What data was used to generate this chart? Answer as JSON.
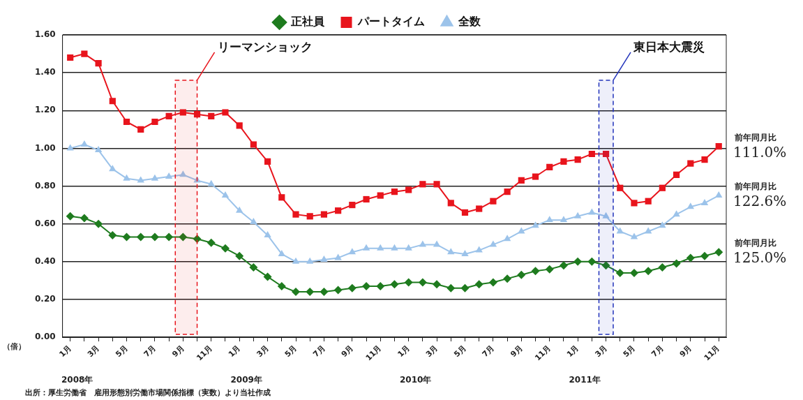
{
  "chart_data": {
    "type": "line",
    "ylabel": "（倍）",
    "legend": "top",
    "grid": "y",
    "line_style": "solid",
    "x": [
      "2008-01",
      "2008-02",
      "2008-03",
      "2008-04",
      "2008-05",
      "2008-06",
      "2008-07",
      "2008-08",
      "2008-09",
      "2008-10",
      "2008-11",
      "2008-12",
      "2009-01",
      "2009-02",
      "2009-03",
      "2009-04",
      "2009-05",
      "2009-06",
      "2009-07",
      "2009-08",
      "2009-09",
      "2009-10",
      "2009-11",
      "2009-12",
      "2010-01",
      "2010-02",
      "2010-03",
      "2010-04",
      "2010-05",
      "2010-06",
      "2010-07",
      "2010-08",
      "2010-09",
      "2010-10",
      "2010-11",
      "2010-12",
      "2011-01",
      "2011-02",
      "2011-03",
      "2011-04",
      "2011-05",
      "2011-06",
      "2011-07",
      "2011-08",
      "2011-09",
      "2011-10",
      "2011-11"
    ],
    "xlim": [
      "2007-12-15",
      "2011-11-17"
    ],
    "xticks": [
      {
        "value": "2008-01",
        "label": "1月"
      },
      {
        "value": "2008-02",
        "label": null
      },
      {
        "value": "2008-03",
        "label": "3月"
      },
      {
        "value": "2008-04",
        "label": null
      },
      {
        "value": "2008-05",
        "label": "5月"
      },
      {
        "value": "2008-06",
        "label": null
      },
      {
        "value": "2008-07",
        "label": "7月"
      },
      {
        "value": "2008-08",
        "label": null
      },
      {
        "value": "2008-09",
        "label": "9月"
      },
      {
        "value": "2008-10",
        "label": null
      },
      {
        "value": "2008-11",
        "label": "11月"
      },
      {
        "value": "2008-12",
        "label": null
      },
      {
        "value": "2009-01",
        "label": "1月"
      },
      {
        "value": "2009-02",
        "label": null
      },
      {
        "value": "2009-03",
        "label": "3月"
      },
      {
        "value": "2009-04",
        "label": null
      },
      {
        "value": "2009-05",
        "label": "5月"
      },
      {
        "value": "2009-06",
        "label": null
      },
      {
        "value": "2009-07",
        "label": "7月"
      },
      {
        "value": "2009-08",
        "label": null
      },
      {
        "value": "2009-09",
        "label": "9月"
      },
      {
        "value": "2009-10",
        "label": null
      },
      {
        "value": "2009-11",
        "label": "11月"
      },
      {
        "value": "2009-12",
        "label": null
      },
      {
        "value": "2010-01",
        "label": "1月"
      },
      {
        "value": "2010-02",
        "label": null
      },
      {
        "value": "2010-03",
        "label": "3月"
      },
      {
        "value": "2010-04",
        "label": null
      },
      {
        "value": "2010-05",
        "label": "5月"
      },
      {
        "value": "2010-06",
        "label": null
      },
      {
        "value": "2010-07",
        "label": "7月"
      },
      {
        "value": "2010-08",
        "label": null
      },
      {
        "value": "2010-09",
        "label": "9月"
      },
      {
        "value": "2010-10",
        "label": null
      },
      {
        "value": "2010-11",
        "label": "11月"
      },
      {
        "value": "2010-12",
        "label": null
      },
      {
        "value": "2011-01",
        "label": "1月"
      },
      {
        "value": "2011-02",
        "label": null
      },
      {
        "value": "2011-03",
        "label": "3月"
      },
      {
        "value": "2011-04",
        "label": null
      },
      {
        "value": "2011-05",
        "label": "5月"
      },
      {
        "value": "2011-06",
        "label": null
      },
      {
        "value": "2011-07",
        "label": "7月"
      },
      {
        "value": "2011-08",
        "label": null
      },
      {
        "value": "2011-09",
        "label": "9月"
      },
      {
        "value": "2011-10",
        "label": null
      },
      {
        "value": "2011-11",
        "label": "11月"
      }
    ],
    "bands": [
      {
        "axis": "x",
        "from": "2008-08-15",
        "to": "2008-10-01",
        "label": "リーマンショック",
        "color": "#e8141c"
      },
      {
        "axis": "x",
        "from": "2011-02-15",
        "to": "2011-03-17",
        "label": "東日本大震災",
        "color": "#2233bb"
      }
    ],
    "ylim": [
      0,
      1.6
    ],
    "yticks": [
      {
        "value": 0,
        "label": "0.00"
      },
      {
        "value": 0.2,
        "label": "0.20"
      },
      {
        "value": 0.4,
        "label": "0.40"
      },
      {
        "value": 0.6,
        "label": "0.60"
      },
      {
        "value": 0.8,
        "label": "0.80"
      },
      {
        "value": 1.0,
        "label": "1.00"
      },
      {
        "value": 1.2,
        "label": "1.20"
      },
      {
        "value": 1.4,
        "label": "1.40"
      },
      {
        "value": 1.6,
        "label": "1.60"
      }
    ],
    "series": [
      {
        "name": "正社員",
        "color": "#1e7b1e",
        "marker": "diamond",
        "values": [
          0.64,
          0.63,
          0.6,
          0.54,
          0.53,
          0.53,
          0.53,
          0.53,
          0.53,
          0.52,
          0.5,
          0.47,
          0.43,
          0.37,
          0.32,
          0.27,
          0.24,
          0.24,
          0.24,
          0.25,
          0.26,
          0.27,
          0.27,
          0.28,
          0.29,
          0.29,
          0.28,
          0.26,
          0.26,
          0.28,
          0.29,
          0.31,
          0.33,
          0.35,
          0.36,
          0.38,
          0.4,
          0.4,
          0.38,
          0.34,
          0.34,
          0.35,
          0.37,
          0.39,
          0.42,
          0.43,
          0.45
        ]
      },
      {
        "name": "パートタイム",
        "color": "#e8141c",
        "marker": "square",
        "values": [
          1.48,
          1.5,
          1.45,
          1.25,
          1.14,
          1.1,
          1.14,
          1.17,
          1.19,
          1.18,
          1.17,
          1.19,
          1.12,
          1.02,
          0.93,
          0.74,
          0.65,
          0.64,
          0.65,
          0.67,
          0.7,
          0.73,
          0.75,
          0.77,
          0.78,
          0.81,
          0.81,
          0.71,
          0.66,
          0.68,
          0.72,
          0.77,
          0.83,
          0.85,
          0.9,
          0.93,
          0.94,
          0.97,
          0.97,
          0.79,
          0.71,
          0.72,
          0.79,
          0.86,
          0.92,
          0.94,
          1.01
        ]
      },
      {
        "name": "全数",
        "color": "#9cc3ea",
        "marker": "triangle",
        "values": [
          1.0,
          1.02,
          0.99,
          0.89,
          0.84,
          0.83,
          0.84,
          0.85,
          0.86,
          0.83,
          0.81,
          0.75,
          0.67,
          0.61,
          0.54,
          0.44,
          0.4,
          0.4,
          0.41,
          0.42,
          0.45,
          0.47,
          0.47,
          0.47,
          0.47,
          0.49,
          0.49,
          0.45,
          0.44,
          0.46,
          0.49,
          0.52,
          0.56,
          0.59,
          0.62,
          0.62,
          0.64,
          0.66,
          0.64,
          0.56,
          0.53,
          0.56,
          0.59,
          0.65,
          0.69,
          0.71,
          0.75
        ]
      }
    ],
    "annotations": [
      {
        "text": "前年同月比\n111.0%",
        "x": "2011-11",
        "y": 1.01
      },
      {
        "text": "前年同月比\n122.6%",
        "x": "2011-11",
        "y": 0.75
      },
      {
        "text": "前年同月比\n125.0%",
        "x": "2011-11",
        "y": 0.45
      },
      "2008年",
      "2009年",
      "2010年",
      "2011年",
      "出所：厚生労働省　雇用形態別労働市場関係指標（実数）より当社作成"
    ]
  }
}
